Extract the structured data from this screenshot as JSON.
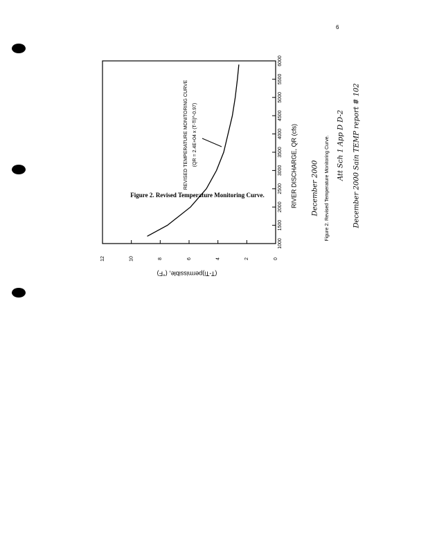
{
  "chart_data": {
    "type": "line",
    "title": "Figure 2. Revised Temperature Monitoring Curve.",
    "x_label": "RIVER DISCHARGE, QR (cfs)",
    "y_label": "(T-Ti)permissible, (°F)",
    "annotation": "REVISED TEMPERATURE MONITORING CURVE",
    "annotation_formula": "(QR = 2.4E+04 x (T-Ti)^-0.97)",
    "x": [
      1200,
      1500,
      2000,
      2500,
      3000,
      3500,
      4000,
      4500,
      5000,
      5500,
      5900
    ],
    "series": [
      {
        "name": "Revised temperature monitoring curve",
        "color": "#000000",
        "values": [
          8.9,
          7.5,
          5.9,
          4.8,
          4.1,
          3.6,
          3.3,
          3.0,
          2.8,
          2.65,
          2.55
        ]
      }
    ],
    "xlim": [
      1000,
      6000
    ],
    "xticks": [
      1000,
      1500,
      2000,
      2500,
      3000,
      3500,
      4000,
      4500,
      5000,
      5500,
      6000
    ],
    "ylim": [
      0,
      12
    ],
    "yticks": [
      0,
      2,
      4,
      6,
      8,
      10,
      12
    ]
  },
  "page": {
    "page_number": "6",
    "notes": [
      "December 2000",
      "Figure 2. Revised Temperature Monitoring Curve.",
      "Att Sch 1 App D D-2",
      "December 2000 Sain TEMP report # 102"
    ]
  }
}
